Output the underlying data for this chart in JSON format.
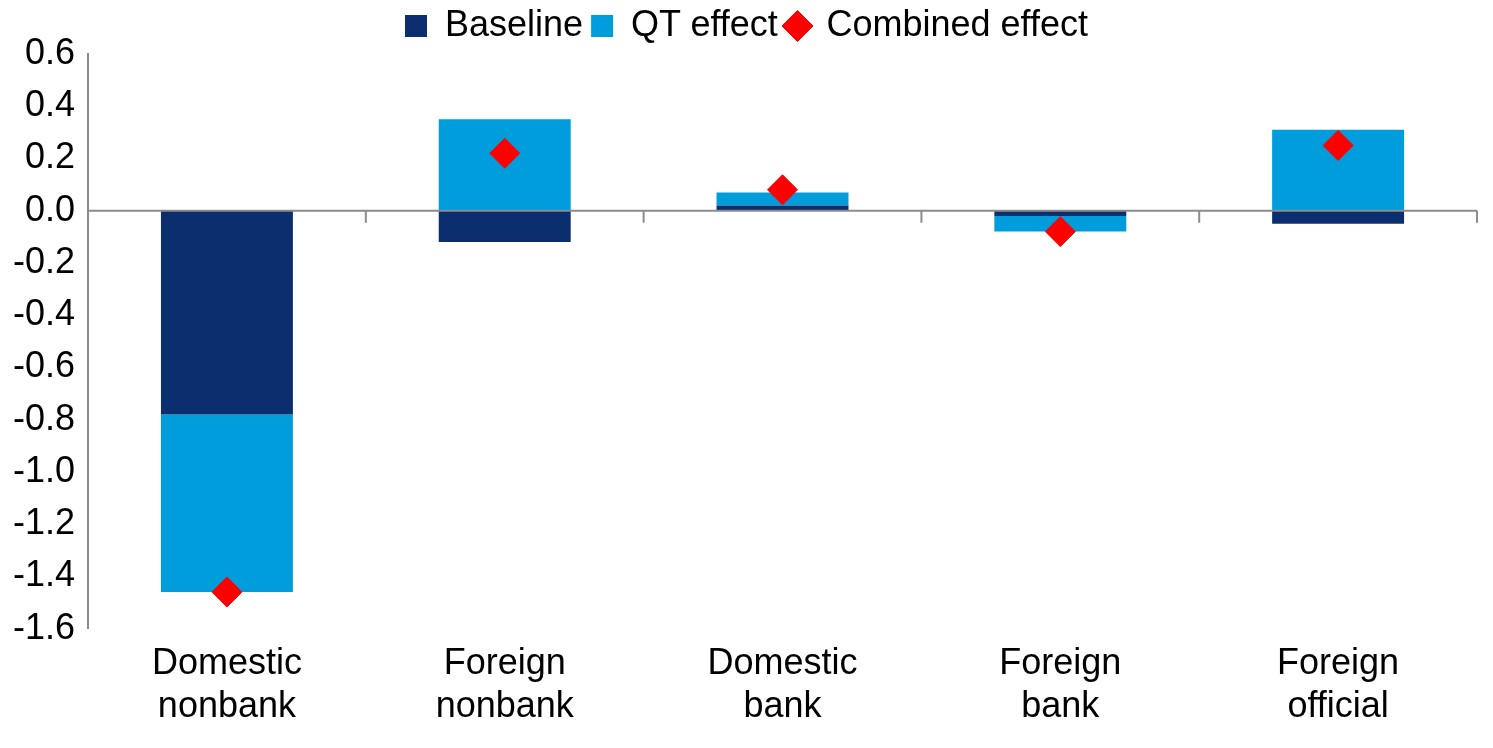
{
  "chart_data": {
    "type": "bar",
    "stacked": true,
    "categories": [
      "Domestic nonbank",
      "Foreign nonbank",
      "Domestic bank",
      "Foreign bank",
      "Foreign official"
    ],
    "series": [
      {
        "name": "Baseline",
        "color": "#0b2e6f",
        "values": [
          -0.78,
          -0.12,
          0.02,
          -0.02,
          -0.05
        ]
      },
      {
        "name": "QT effect",
        "color": "#009ddc",
        "values": [
          -0.68,
          0.35,
          0.05,
          -0.06,
          0.31
        ]
      },
      {
        "name": "Combined effect",
        "type": "scatter",
        "color": "#ff0000",
        "marker": "diamond",
        "x": [
          "Domestic nonbank",
          "Foreign nonbank",
          "Domestic bank",
          "Foreign bank",
          "Foreign official"
        ],
        "values": [
          -1.46,
          0.22,
          0.08,
          -0.08,
          0.25
        ]
      }
    ],
    "ylim": [
      -1.6,
      0.6
    ],
    "yticks": [
      {
        "value": -1.6,
        "label": "-1.6"
      },
      {
        "value": -1.4,
        "label": "-1.4"
      },
      {
        "value": -1.2,
        "label": "-1.2"
      },
      {
        "value": -1,
        "label": "-1.0"
      },
      {
        "value": -0.8,
        "label": "-0.8"
      },
      {
        "value": -0.6,
        "label": "-0.6"
      },
      {
        "value": -0.4,
        "label": "-0.4"
      },
      {
        "value": -0.2,
        "label": "-0.2"
      },
      {
        "value": 0,
        "label": "0.0"
      },
      {
        "value": 0.2,
        "label": "0.2"
      },
      {
        "value": 0.4,
        "label": "0.4"
      },
      {
        "value": 0.6,
        "label": "0.6"
      }
    ],
    "ref_lines": [
      {
        "axis": "y",
        "value": 0,
        "color": "#8c8c8c"
      }
    ],
    "grid": false,
    "legend": "top"
  }
}
